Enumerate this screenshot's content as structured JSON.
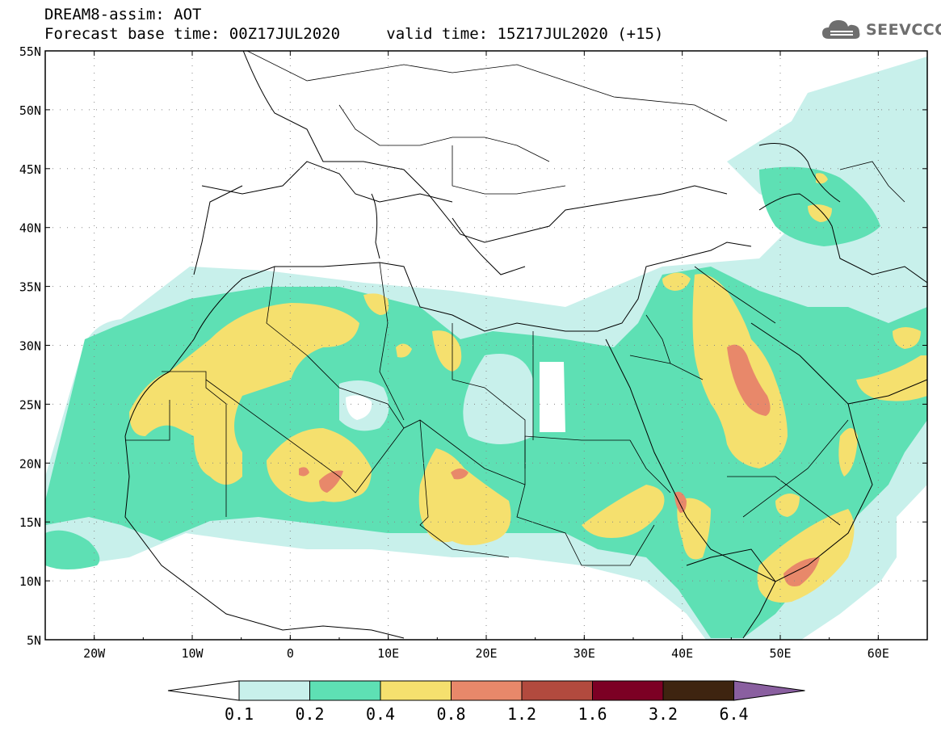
{
  "header": {
    "title": "DREAM8-assim: AOT",
    "forecast_line": "Forecast base time: 00Z17JUL2020",
    "valid_line": "valid time: 15Z17JUL2020 (+15)"
  },
  "logo": {
    "text": "SEEVCCC",
    "icon": "cloud-icon"
  },
  "map": {
    "lon_range": [
      -25,
      65
    ],
    "lat_range": [
      5,
      55
    ],
    "lat_labels": [
      "55N",
      "50N",
      "45N",
      "40N",
      "35N",
      "30N",
      "25N",
      "20N",
      "15N",
      "10N",
      "5N"
    ],
    "lon_labels": [
      "20W",
      "10W",
      "0",
      "10E",
      "20E",
      "30E",
      "40E",
      "50E",
      "60E"
    ],
    "grid": "dotted"
  },
  "colorbar": {
    "labels": [
      "0.1",
      "0.2",
      "0.4",
      "0.8",
      "1.2",
      "1.6",
      "3.2",
      "6.4"
    ],
    "colors": [
      "#c8f0eb",
      "#5ee0b4",
      "#f5e06e",
      "#e8886a",
      "#b24a3e",
      "#7c0024",
      "#3e2410",
      "#8a5fa0"
    ]
  }
}
